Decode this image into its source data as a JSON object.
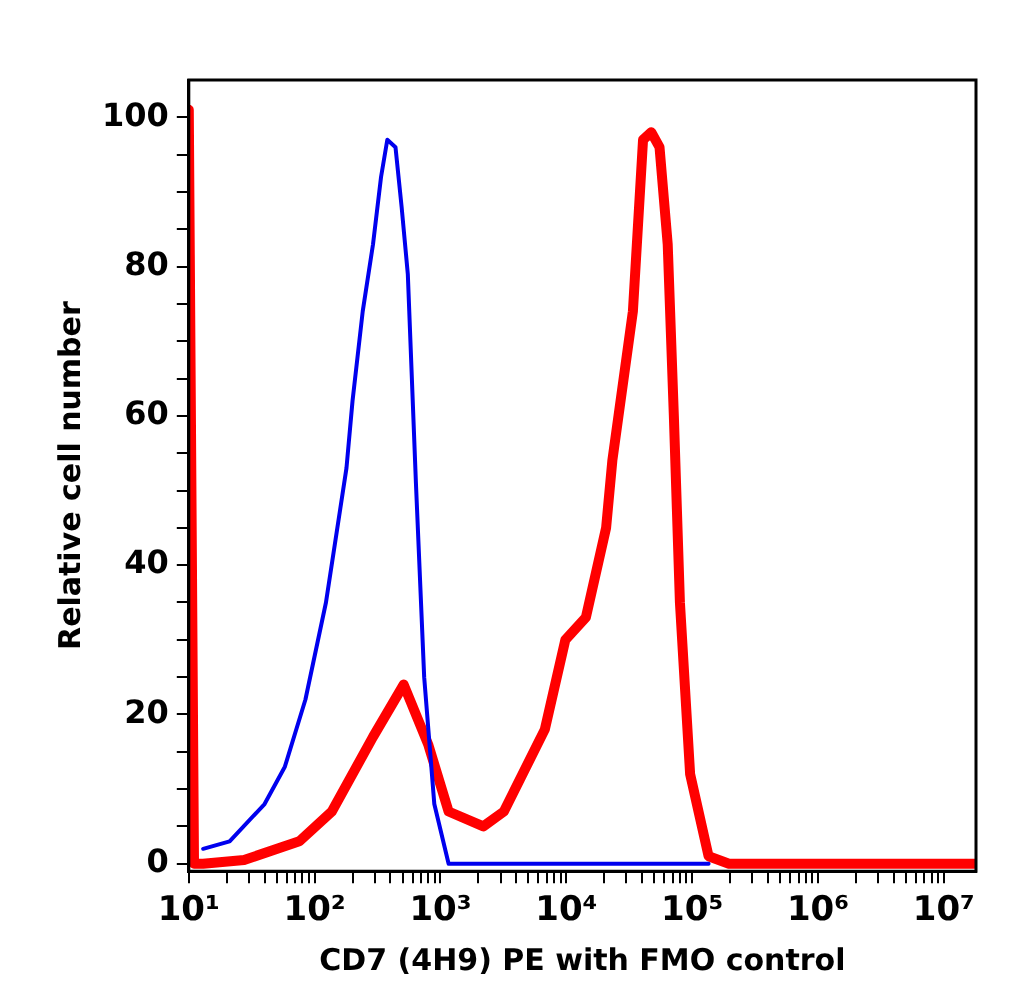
{
  "chart_data": {
    "type": "line",
    "xlabel": "CD7 (4H9) PE with FMO control",
    "ylabel": "Relative cell number",
    "log": "x",
    "grid": false,
    "legend": false,
    "marker": "none",
    "line_style": "solid",
    "xlim": [
      10,
      18000000
    ],
    "ylim": [
      -1,
      105
    ],
    "xticks": [
      {
        "value": 10,
        "label": "10¹"
      },
      {
        "value": 20,
        "label": null
      },
      {
        "value": 30,
        "label": null
      },
      {
        "value": 40,
        "label": null
      },
      {
        "value": 50,
        "label": null
      },
      {
        "value": 60,
        "label": null
      },
      {
        "value": 70,
        "label": null
      },
      {
        "value": 80,
        "label": null
      },
      {
        "value": 90,
        "label": null
      },
      {
        "value": 100,
        "label": "10²"
      },
      {
        "value": 200,
        "label": null
      },
      {
        "value": 300,
        "label": null
      },
      {
        "value": 400,
        "label": null
      },
      {
        "value": 500,
        "label": null
      },
      {
        "value": 600,
        "label": null
      },
      {
        "value": 700,
        "label": null
      },
      {
        "value": 800,
        "label": null
      },
      {
        "value": 900,
        "label": null
      },
      {
        "value": 1000,
        "label": "10³"
      },
      {
        "value": 2000,
        "label": null
      },
      {
        "value": 3000,
        "label": null
      },
      {
        "value": 4000,
        "label": null
      },
      {
        "value": 5000,
        "label": null
      },
      {
        "value": 6000,
        "label": null
      },
      {
        "value": 7000,
        "label": null
      },
      {
        "value": 8000,
        "label": null
      },
      {
        "value": 9000,
        "label": null
      },
      {
        "value": 10000,
        "label": "10⁴"
      },
      {
        "value": 20000,
        "label": null
      },
      {
        "value": 30000,
        "label": null
      },
      {
        "value": 40000,
        "label": null
      },
      {
        "value": 50000,
        "label": null
      },
      {
        "value": 60000,
        "label": null
      },
      {
        "value": 70000,
        "label": null
      },
      {
        "value": 80000,
        "label": null
      },
      {
        "value": 90000,
        "label": null
      },
      {
        "value": 100000,
        "label": "10⁵"
      },
      {
        "value": 200000,
        "label": null
      },
      {
        "value": 300000,
        "label": null
      },
      {
        "value": 400000,
        "label": null
      },
      {
        "value": 500000,
        "label": null
      },
      {
        "value": 600000,
        "label": null
      },
      {
        "value": 700000,
        "label": null
      },
      {
        "value": 800000,
        "label": null
      },
      {
        "value": 900000,
        "label": null
      },
      {
        "value": 1000000,
        "label": "10⁶"
      },
      {
        "value": 2000000,
        "label": null
      },
      {
        "value": 3000000,
        "label": null
      },
      {
        "value": 4000000,
        "label": null
      },
      {
        "value": 5000000,
        "label": null
      },
      {
        "value": 6000000,
        "label": null
      },
      {
        "value": 7000000,
        "label": null
      },
      {
        "value": 8000000,
        "label": null
      },
      {
        "value": 9000000,
        "label": null
      },
      {
        "value": 10000000,
        "label": "10⁷"
      }
    ],
    "yticks": [
      0,
      {
        "value": 5,
        "label": null
      },
      {
        "value": 10,
        "label": null
      },
      {
        "value": 15,
        "label": null
      },
      20,
      {
        "value": 25,
        "label": null
      },
      {
        "value": 30,
        "label": null
      },
      {
        "value": 35,
        "label": null
      },
      40,
      {
        "value": 45,
        "label": null
      },
      {
        "value": 50,
        "label": null
      },
      {
        "value": 55,
        "label": null
      },
      60,
      {
        "value": 65,
        "label": null
      },
      {
        "value": 70,
        "label": null
      },
      {
        "value": 75,
        "label": null
      },
      80,
      {
        "value": 85,
        "label": null
      },
      {
        "value": 90,
        "label": null
      },
      {
        "value": 95,
        "label": null
      },
      100
    ],
    "series": [
      {
        "color": "#0000ee",
        "x": [
          13,
          21.1,
          40,
          58,
          84.5,
          123,
          179,
          200,
          241,
          291,
          337,
          378,
          439,
          491,
          550,
          638,
          742,
          893,
          1160,
          135000
        ],
        "values": [
          2,
          3,
          8,
          13,
          22,
          35,
          53,
          62,
          74,
          83,
          92,
          97,
          96,
          88,
          79,
          51,
          25,
          8,
          0,
          0
        ]
      },
      {
        "color": "#ff0000",
        "x": [
          10,
          11,
          13,
          27.5,
          75.5,
          137,
          291,
          510,
          798,
          1160,
          2190,
          3190,
          6750,
          9820,
          14300,
          20700,
          23200,
          33800,
          40700,
          47300,
          55000,
          63900,
          71500,
          79900,
          96300,
          135000,
          196000,
          18000000
        ],
        "values": [
          101,
          0,
          0,
          0.5,
          3,
          7,
          17,
          24,
          16,
          7,
          5,
          7,
          18,
          30,
          33,
          45,
          54,
          74,
          97,
          98,
          96,
          83,
          60,
          35,
          12,
          1,
          0,
          0
        ]
      }
    ]
  }
}
